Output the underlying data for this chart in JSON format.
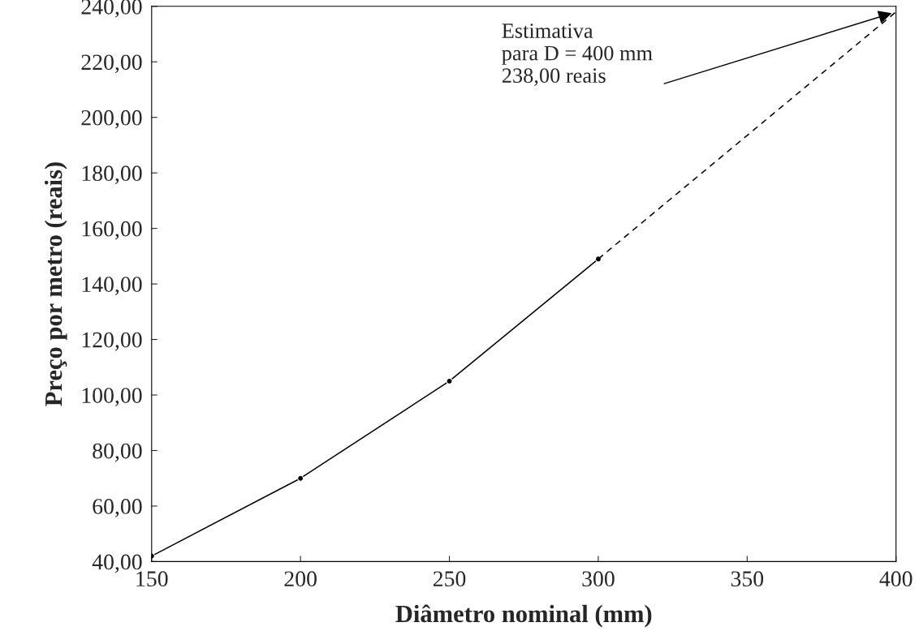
{
  "chart_data": {
    "type": "line",
    "xlabel": "Diâmetro nominal (mm)",
    "ylabel": "Preço por metro (reais)",
    "series": [
      {
        "color": "#000000",
        "x": [
          150,
          200,
          250,
          300
        ],
        "values": [
          42,
          70,
          105,
          149
        ],
        "marker": "circle",
        "line_style": "solid"
      },
      {
        "color": "#000000",
        "x": [
          300,
          400
        ],
        "values": [
          149,
          238
        ],
        "marker": "none",
        "line_style": "dashed"
      }
    ],
    "xlim": [
      150,
      400
    ],
    "xticks": [
      150,
      200,
      250,
      300,
      350,
      400
    ],
    "ylim": [
      40,
      240
    ],
    "yticks": [
      {
        "value": 40,
        "label": "40,00"
      },
      {
        "value": 60,
        "label": "60,00"
      },
      {
        "value": 80,
        "label": "80,00"
      },
      {
        "value": 100,
        "label": "100,00"
      },
      {
        "value": 120,
        "label": "120,00"
      },
      {
        "value": 140,
        "label": "140,00"
      },
      {
        "value": 160,
        "label": "160,00"
      },
      {
        "value": 180,
        "label": "180,00"
      },
      {
        "value": 200,
        "label": "200,00"
      },
      {
        "value": 220,
        "label": "220,00"
      },
      {
        "value": 240,
        "label": "240,00"
      }
    ],
    "annotations": [
      {
        "text": "Estimativa\npara D = 400 mm\n238,00 reais",
        "x": 400,
        "y": 238
      }
    ],
    "grid": false,
    "legend": false
  }
}
